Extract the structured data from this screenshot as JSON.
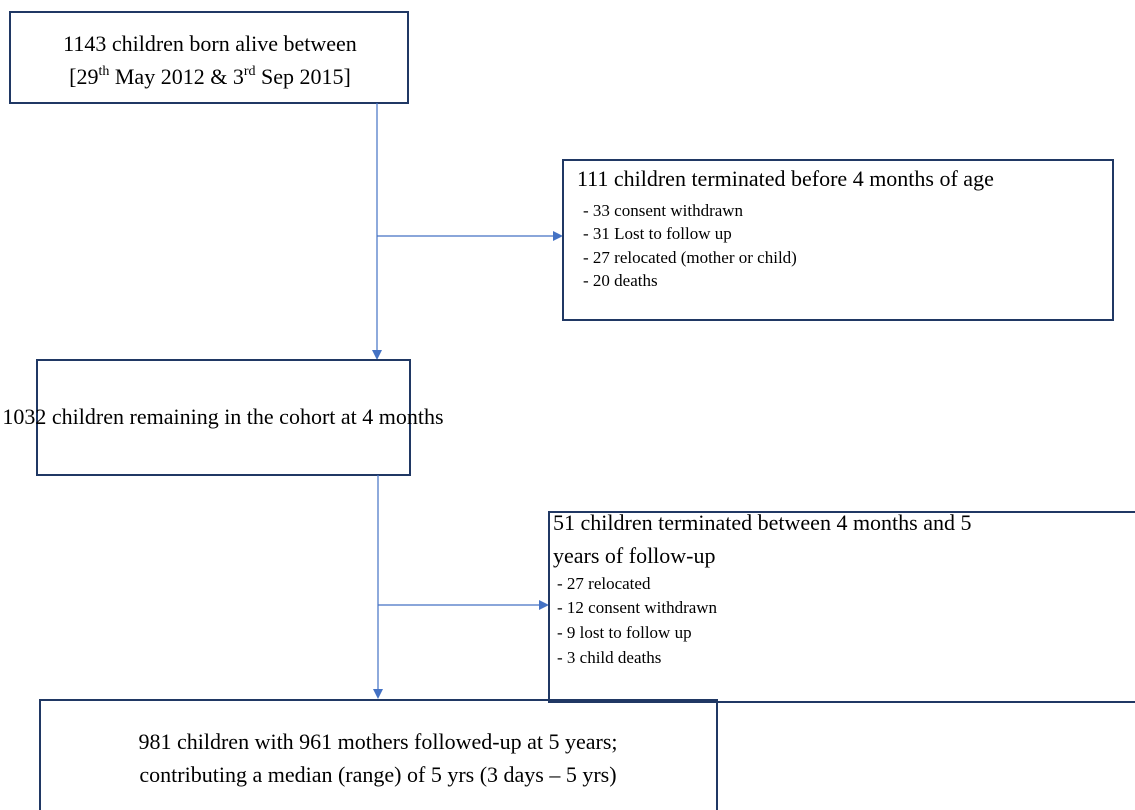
{
  "boxes": [
    {
      "line1": "1143 children born alive between",
      "line2_parts": [
        "[29",
        "th",
        " May 2012 & 3",
        "rd",
        " Sep 2015]"
      ]
    },
    {
      "heading": "111 children terminated before 4 months of age",
      "items": [
        "- 33 consent withdrawn",
        "- 31 Lost to follow up",
        "- 27 relocated (mother or child)",
        "- 20 deaths"
      ]
    },
    {
      "text": "1032 children remaining in the cohort at 4 months"
    },
    {
      "heading_lines": [
        "51 children terminated between 4 months and 5",
        "years of follow-up"
      ],
      "items": [
        "- 27 relocated",
        "- 12 consent withdrawn",
        "- 9 lost to follow up",
        "- 3 child deaths"
      ]
    },
    {
      "lines": [
        "981 children with 961 mothers followed-up at 5 years;",
        "contributing a median (range) of 5 yrs (3 days – 5 yrs)"
      ]
    }
  ]
}
